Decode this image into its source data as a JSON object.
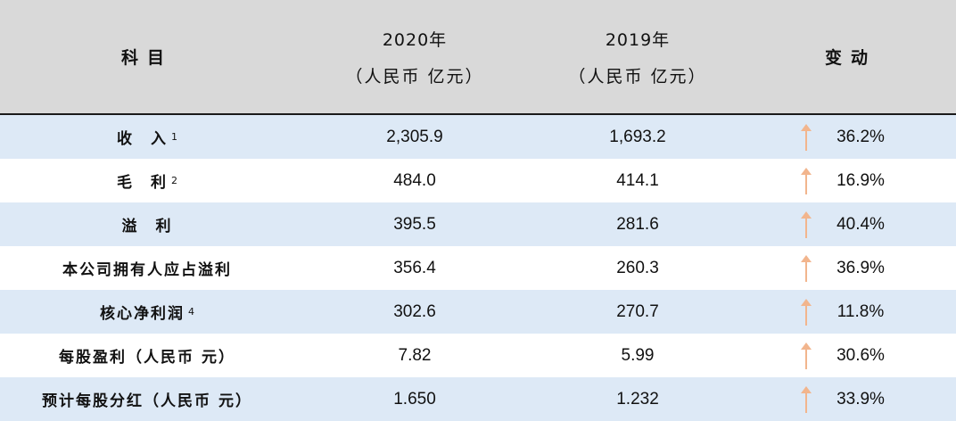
{
  "header": {
    "subject": "科目",
    "col2020": {
      "year": "2020年",
      "unit": "（人民币 亿元）"
    },
    "col2019": {
      "year": "2019年",
      "unit": "（人民币 亿元）"
    },
    "change": "变动"
  },
  "rows": [
    {
      "label": "收　入",
      "sup": "1",
      "v2020": "2,305.9",
      "v2019": "1,693.2",
      "change": "36.2%",
      "trend": "up-arrow-icon"
    },
    {
      "label": "毛　利",
      "sup": "2",
      "v2020": "484.0",
      "v2019": "414.1",
      "change": "16.9%",
      "trend": "up-arrow-icon"
    },
    {
      "label": "溢　利",
      "sup": "",
      "v2020": "395.5",
      "v2019": "281.6",
      "change": "40.4%",
      "trend": "up-arrow-icon"
    },
    {
      "label": "本公司拥有人应占溢利",
      "sup": "",
      "v2020": "356.4",
      "v2019": "260.3",
      "change": "36.9%",
      "trend": "up-arrow-icon"
    },
    {
      "label": "核心净利润",
      "sup": "4",
      "v2020": "302.6",
      "v2019": "270.7",
      "change": "11.8%",
      "trend": "up-arrow-icon"
    },
    {
      "label": "每股盈利（人民币 元）",
      "sup": "",
      "v2020": "7.82",
      "v2019": "5.99",
      "change": "30.6%",
      "trend": "up-arrow-icon"
    },
    {
      "label": "预计每股分红（人民币 元）",
      "sup": "",
      "v2020": "1.650",
      "v2019": "1.232",
      "change": "33.9%",
      "trend": "up-arrow-icon"
    }
  ],
  "colors": {
    "header_bg": "#d9d9d9",
    "row_blue": "#dde9f6",
    "arrow": "#f2b58d"
  }
}
